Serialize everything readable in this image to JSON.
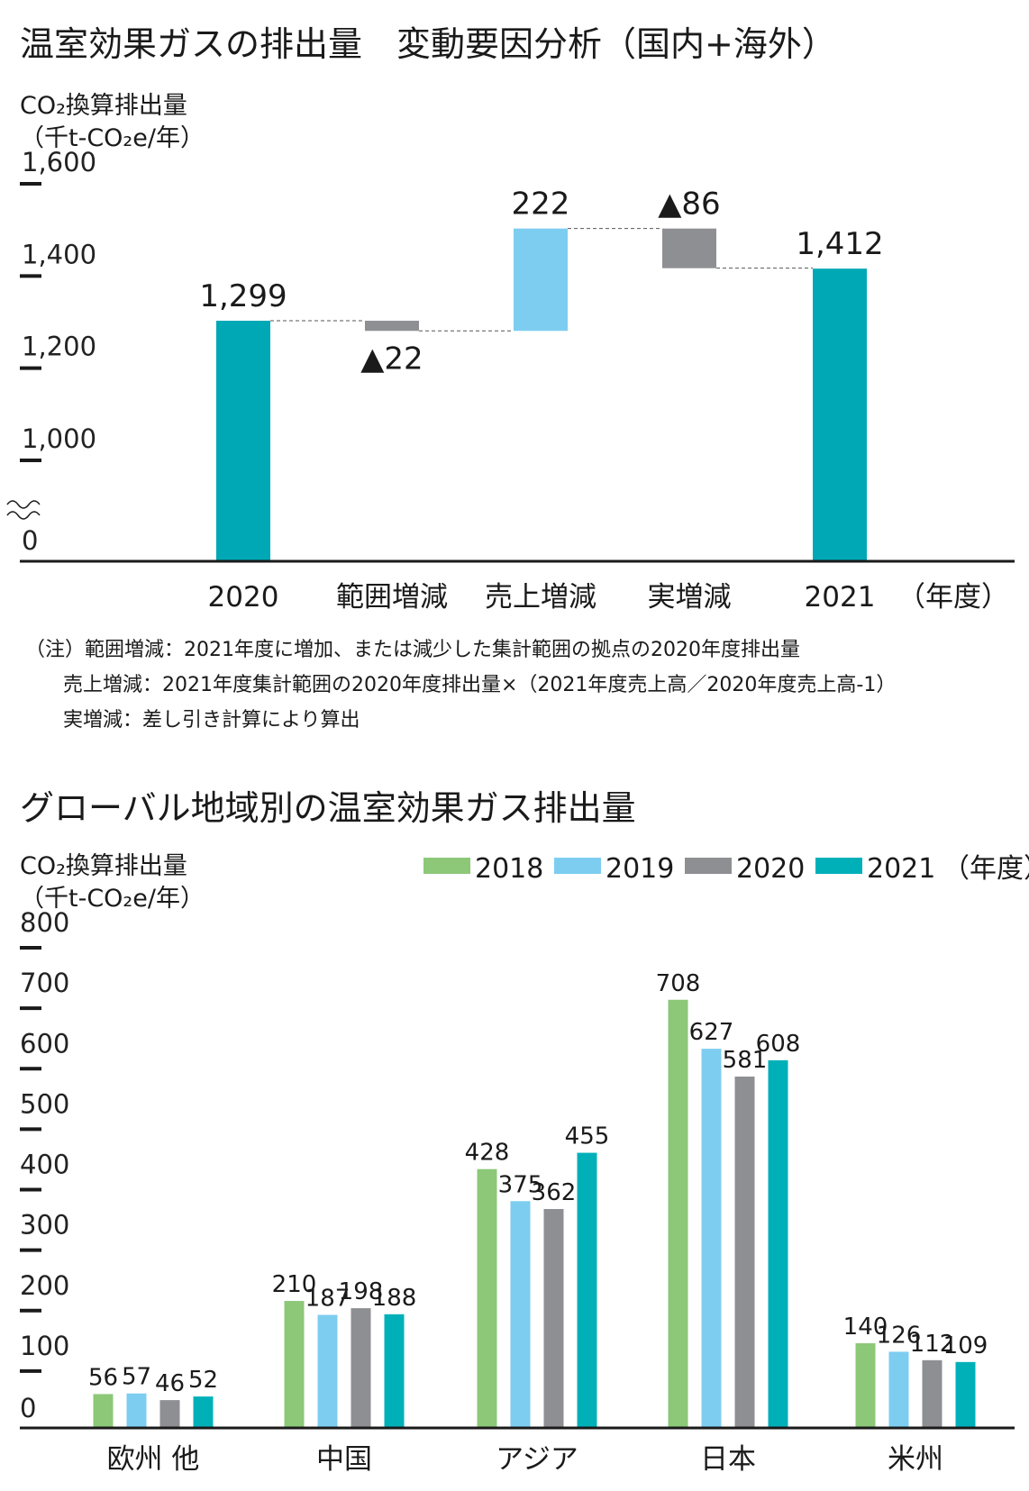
{
  "chart_data": [
    {
      "type": "bar",
      "subtype": "waterfall",
      "title": "温室効果ガスの排出量　変動要因分析（国内+海外）",
      "ylabel_line1": "CO₂換算排出量",
      "ylabel_line2": "（千t-CO₂e/年）",
      "xlabel": "（年度）",
      "ylim": [
        1000,
        1600
      ],
      "axis_break": true,
      "y_ticks": [
        "1,600",
        "1,400",
        "1,200",
        "1,000",
        "0"
      ],
      "categories": [
        "2020",
        "範囲増減",
        "売上増減",
        "実増減",
        "2021"
      ],
      "values": [
        1299,
        -22,
        222,
        -86,
        1412
      ],
      "value_labels": [
        "1,299",
        "▲22",
        "222",
        "▲86",
        "1,412"
      ],
      "kinds": [
        "total",
        "delta",
        "delta",
        "delta",
        "total"
      ],
      "colors": {
        "total": "#00a8b5",
        "decrease": "#8e8f93",
        "increase": "#7dcdf0"
      },
      "notes": [
        "（注）範囲増減：2021年度に増加、または減少した集計範囲の拠点の2020年度排出量",
        "売上増減：2021年度集計範囲の2020年度排出量×（2021年度売上高／2020年度売上高-1）",
        "実増減：差し引き計算により算出"
      ]
    },
    {
      "type": "bar",
      "title": "グローバル地域別の温室効果ガス排出量",
      "ylabel_line1": "CO₂換算排出量",
      "ylabel_line2": "（千t-CO₂e/年）",
      "legend_suffix": "（年度）",
      "legend_position": "top-right",
      "ylim": [
        0,
        800
      ],
      "y_ticks": [
        "800",
        "700",
        "600",
        "500",
        "400",
        "300",
        "200",
        "100",
        "0"
      ],
      "categories": [
        "欧州 他",
        "中国",
        "アジア",
        "日本",
        "米州"
      ],
      "series": [
        {
          "name": "2018",
          "color": "#8cc878",
          "values": [
            56,
            210,
            428,
            708,
            140
          ]
        },
        {
          "name": "2019",
          "color": "#7dcdf0",
          "values": [
            57,
            187,
            375,
            627,
            126
          ]
        },
        {
          "name": "2020",
          "color": "#8e8f93",
          "values": [
            46,
            198,
            362,
            581,
            112
          ]
        },
        {
          "name": "2021",
          "color": "#00b0b9",
          "values": [
            52,
            188,
            455,
            608,
            109
          ]
        }
      ]
    }
  ]
}
